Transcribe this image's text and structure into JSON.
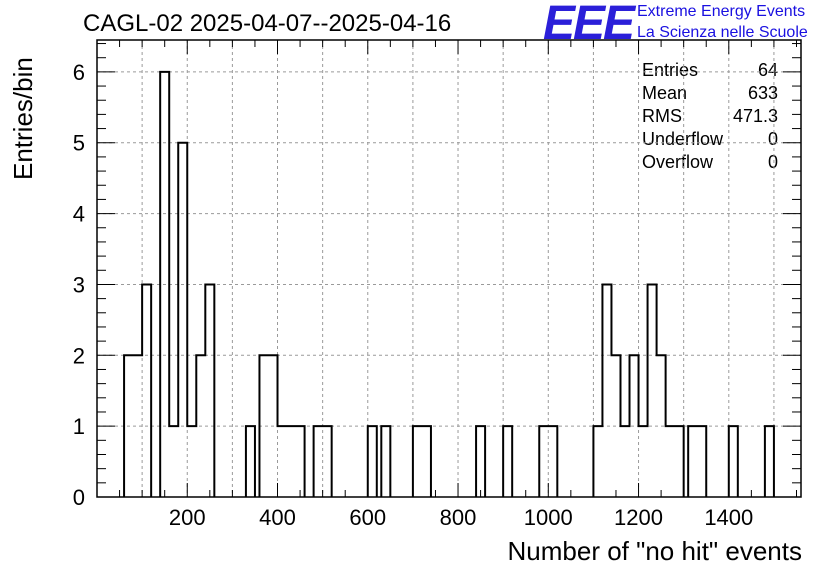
{
  "title": "CAGL-02 2025-04-07--2025-04-16",
  "logo": {
    "mark": "EEE",
    "line1": "Extreme Energy Events",
    "line2": "La Scienza nelle Scuole",
    "color": "#2b1fd9"
  },
  "stats": [
    {
      "label": "Entries",
      "value": "64"
    },
    {
      "label": "Mean",
      "value": "633"
    },
    {
      "label": "RMS",
      "value": "471.3"
    },
    {
      "label": "Underflow",
      "value": "0"
    },
    {
      "label": "Overflow",
      "value": "0"
    }
  ],
  "chart_data": {
    "type": "histogram",
    "xlabel": "Number of \"no hit\" events",
    "ylabel": "Entries/bin",
    "xlim": [
      0,
      1560
    ],
    "ylim": [
      0,
      6.45
    ],
    "bin_width": 20,
    "xticks": [
      200,
      400,
      600,
      800,
      1000,
      1200,
      1400
    ],
    "yticks": [
      0,
      1,
      2,
      3,
      4,
      5,
      6
    ],
    "grid": true,
    "line_color": "#000000",
    "bins": [
      {
        "x": 70,
        "y": 2
      },
      {
        "x": 90,
        "y": 2
      },
      {
        "x": 110,
        "y": 3
      },
      {
        "x": 150,
        "y": 6
      },
      {
        "x": 170,
        "y": 1
      },
      {
        "x": 190,
        "y": 5
      },
      {
        "x": 210,
        "y": 1
      },
      {
        "x": 230,
        "y": 2
      },
      {
        "x": 250,
        "y": 3
      },
      {
        "x": 340,
        "y": 1
      },
      {
        "x": 370,
        "y": 2
      },
      {
        "x": 390,
        "y": 2
      },
      {
        "x": 410,
        "y": 1
      },
      {
        "x": 430,
        "y": 1
      },
      {
        "x": 450,
        "y": 1
      },
      {
        "x": 490,
        "y": 1
      },
      {
        "x": 510,
        "y": 1
      },
      {
        "x": 610,
        "y": 1
      },
      {
        "x": 640,
        "y": 1
      },
      {
        "x": 710,
        "y": 1
      },
      {
        "x": 730,
        "y": 1
      },
      {
        "x": 850,
        "y": 1
      },
      {
        "x": 910,
        "y": 1
      },
      {
        "x": 990,
        "y": 1
      },
      {
        "x": 1010,
        "y": 1
      },
      {
        "x": 1110,
        "y": 1
      },
      {
        "x": 1130,
        "y": 3
      },
      {
        "x": 1150,
        "y": 2
      },
      {
        "x": 1170,
        "y": 1
      },
      {
        "x": 1190,
        "y": 2
      },
      {
        "x": 1210,
        "y": 1
      },
      {
        "x": 1230,
        "y": 3
      },
      {
        "x": 1250,
        "y": 2
      },
      {
        "x": 1270,
        "y": 1
      },
      {
        "x": 1290,
        "y": 1
      },
      {
        "x": 1320,
        "y": 1
      },
      {
        "x": 1340,
        "y": 1
      },
      {
        "x": 1410,
        "y": 1
      },
      {
        "x": 1490,
        "y": 1
      }
    ]
  }
}
